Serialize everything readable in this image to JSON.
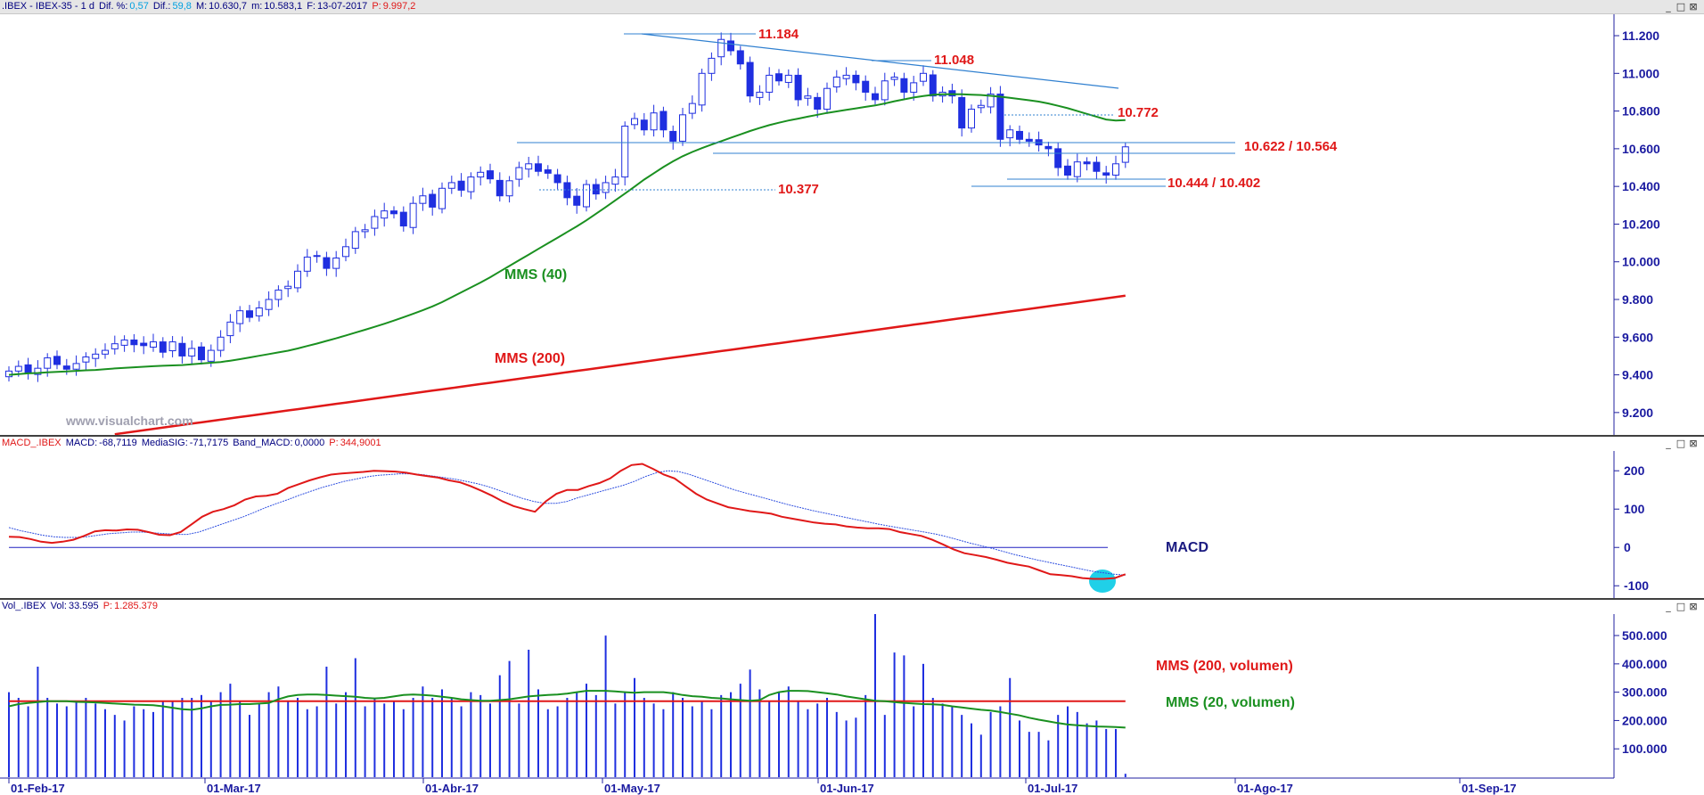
{
  "price_pane": {
    "header": {
      "symbol": ".IBEX - IBEX-35 - 1 d",
      "dif_pct_label": "Dif. %:",
      "dif_pct": "0,57",
      "dif_label": "Dif.:",
      "dif": "59,8",
      "max_label": "M:",
      "max": "10.630,7",
      "min_label": "m:",
      "min": "10.583,1",
      "date_label": "F:",
      "date": "13-07-2017",
      "p_label": "P:",
      "p": "9.997,2"
    },
    "watermark": "www.visualchart.com",
    "annotations": {
      "level_11184": "11.184",
      "level_11048": "11.048",
      "level_10772": "10.772",
      "level_10622": "10.622 / 10.564",
      "level_10377": "10.377",
      "level_10444": "10.444 / 10.402",
      "mms40": "MMS (40)",
      "mms200": "MMS (200)"
    }
  },
  "macd_pane": {
    "header": {
      "name": "MACD_.IBEX",
      "macd_label": "MACD:",
      "macd": "-68,7119",
      "sig_label": "MediaSIG:",
      "sig": "-71,7175",
      "band_label": "Band_MACD:",
      "band": "0,0000",
      "p_label": "P:",
      "p": "344,9001"
    },
    "label": "MACD"
  },
  "volume_pane": {
    "header": {
      "name": "Vol_.IBEX",
      "vol_label": "Vol:",
      "vol": "33.595",
      "p_label": "P:",
      "p": "1.285.379"
    },
    "label_ma200": "MMS (200, volumen)",
    "label_ma20": "MMS (20, volumen)"
  },
  "window_buttons": [
    "_",
    "□",
    "⊠"
  ],
  "colors": {
    "candle": "#1f2fe0",
    "mms40": "#1a9020",
    "mms200": "#e01818",
    "annotation_red": "#e01818",
    "trend_line": "#3080d0",
    "macd_line": "#e01818",
    "macd_signal": "#3050e0",
    "axis_text": "#1a1aa0",
    "circle": "#20d0e8"
  },
  "chart_data": [
    {
      "type": "candlestick",
      "title": ".IBEX - IBEX-35 - 1 d",
      "ylim": [
        9100,
        11290
      ],
      "y_ticks": [
        9200,
        9400,
        9600,
        9800,
        10000,
        10200,
        10400,
        10600,
        10800,
        11000,
        11200
      ],
      "y_tick_labels": [
        "9.200",
        "9.400",
        "9.600",
        "9.800",
        "10.000",
        "10.200",
        "10.400",
        "10.600",
        "10.800",
        "11.000",
        "11.200"
      ],
      "x_tick_labels": [
        "01-Feb-17",
        "01-Mar-17",
        "01-Abr-17",
        "01-May-17",
        "01-Jun-17",
        "01-Jul-17",
        "01-Ago-17",
        "01-Sep-17"
      ],
      "sessions": 117,
      "series": [
        {
          "name": "MMS (40)",
          "values": [
            9400,
            9404,
            9408,
            9410,
            9413,
            9416,
            9418,
            9421,
            9424,
            9426,
            9430,
            9434,
            9437,
            9440,
            9443,
            9446,
            9448,
            9450,
            9452,
            9456,
            9460,
            9464,
            9468,
            9475,
            9483,
            9492,
            9501,
            9510,
            9519,
            9528,
            9540,
            9553,
            9566,
            9580,
            9594,
            9609,
            9624,
            9639,
            9655,
            9671,
            9688,
            9706,
            9724,
            9743,
            9763,
            9786,
            9812,
            9838,
            9864,
            9890,
            9918,
            9948,
            9978,
            10008,
            10038,
            10068,
            10098,
            10128,
            10158,
            10188,
            10220,
            10255,
            10290,
            10326,
            10362,
            10399,
            10436,
            10470,
            10503,
            10533,
            10560,
            10583,
            10603,
            10622,
            10640,
            10658,
            10676,
            10694,
            10710,
            10725,
            10738,
            10750,
            10760,
            10770,
            10780,
            10790,
            10798,
            10806,
            10814,
            10822,
            10830,
            10840,
            10852,
            10862,
            10872,
            10880,
            10886,
            10889,
            10890,
            10889,
            10887,
            10885,
            10881,
            10876,
            10870,
            10864,
            10857,
            10850,
            10840,
            10828,
            10815,
            10800,
            10785,
            10770,
            10755,
            10750,
            10752
          ]
        },
        {
          "name": "MMS (200)",
          "values": [
            9085,
            9092,
            9099,
            9106,
            9113,
            9120,
            9127,
            9134,
            9141,
            9148,
            9155,
            9162,
            9169,
            9176,
            9183,
            9190,
            9197,
            9204,
            9211,
            9218,
            9225,
            9232,
            9239,
            9246,
            9253,
            9260,
            9267,
            9274,
            9281,
            9288,
            9295,
            9302,
            9309,
            9316,
            9323,
            9330,
            9337,
            9344,
            9351,
            9358,
            9365,
            9372,
            9379,
            9386,
            9393,
            9400,
            9407,
            9414,
            9421,
            9428,
            9435,
            9442,
            9449,
            9456,
            9463,
            9470,
            9477,
            9484,
            9491,
            9498,
            9505,
            9512,
            9519,
            9526,
            9533,
            9540,
            9547,
            9554,
            9561,
            9568,
            9575,
            9582,
            9589,
            9596,
            9603,
            9610,
            9617,
            9624,
            9631,
            9638,
            9645,
            9652,
            9659,
            9666,
            9673,
            9680,
            9687,
            9694,
            9701,
            9708,
            9715,
            9722,
            9729,
            9736,
            9743,
            9750,
            9757,
            9764,
            9771,
            9778,
            9785,
            9792,
            9799,
            9806,
            9813,
            9820
          ]
        }
      ],
      "closes": [
        9420,
        9445,
        9410,
        9435,
        9490,
        9455,
        9430,
        9460,
        9495,
        9510,
        9530,
        9565,
        9585,
        9560,
        9555,
        9575,
        9520,
        9575,
        9500,
        9540,
        9480,
        9530,
        9600,
        9680,
        9740,
        9705,
        9755,
        9800,
        9850,
        9870,
        9950,
        10025,
        10030,
        9965,
        10020,
        10080,
        10160,
        10170,
        10240,
        10270,
        10255,
        10190,
        10310,
        10350,
        10290,
        10390,
        10420,
        10380,
        10450,
        10475,
        10440,
        10350,
        10430,
        10500,
        10520,
        10480,
        10470,
        10420,
        10340,
        10300,
        10410,
        10360,
        10420,
        10450,
        10720,
        10760,
        10700,
        10790,
        10700,
        10640,
        10780,
        10840,
        11000,
        11080,
        11180,
        11120,
        11050,
        10880,
        10900,
        10990,
        10960,
        10990,
        10860,
        10880,
        10810,
        10920,
        10980,
        10990,
        10950,
        10900,
        10860,
        10960,
        10980,
        10900,
        10950,
        11000,
        10880,
        10900,
        10880,
        10710,
        10810,
        10830,
        10890,
        10650,
        10700,
        10650,
        10640,
        10620,
        10600,
        10500,
        10460,
        10530,
        10520,
        10480,
        10460,
        10520,
        10610
      ]
    },
    {
      "type": "line",
      "title": "MACD_.IBEX",
      "ylim": [
        -125,
        240
      ],
      "y_ticks": [
        -100,
        0,
        100,
        200
      ],
      "y_tick_labels": [
        "-100",
        "0",
        "100",
        "200"
      ],
      "band": 0,
      "series": [
        {
          "name": "MACD",
          "values": [
            28,
            27,
            22,
            15,
            12,
            15,
            20,
            30,
            42,
            45,
            44,
            47,
            46,
            40,
            33,
            32,
            40,
            60,
            80,
            93,
            100,
            110,
            125,
            133,
            135,
            140,
            155,
            165,
            175,
            183,
            190,
            193,
            195,
            197,
            200,
            199,
            198,
            195,
            190,
            186,
            182,
            175,
            170,
            160,
            148,
            135,
            120,
            108,
            100,
            93,
            120,
            140,
            150,
            150,
            160,
            168,
            180,
            200,
            215,
            218,
            205,
            190,
            180,
            160,
            140,
            125,
            115,
            105,
            100,
            95,
            92,
            88,
            80,
            75,
            70,
            65,
            62,
            60,
            55,
            52,
            50,
            50,
            48,
            40,
            35,
            30,
            20,
            8,
            -5,
            -15,
            -20,
            -25,
            -32,
            -40,
            -45,
            -50,
            -60,
            -70,
            -72,
            -75,
            -80,
            -82,
            -82,
            -80,
            -70
          ]
        },
        {
          "name": "MediaSIG",
          "values": [
            52,
            44,
            38,
            32,
            28,
            26,
            26,
            28,
            32,
            36,
            38,
            40,
            40,
            38,
            36,
            34,
            34,
            40,
            50,
            60,
            70,
            80,
            92,
            104,
            115,
            125,
            136,
            146,
            156,
            164,
            172,
            178,
            184,
            188,
            190,
            192,
            192,
            190,
            186,
            182,
            178,
            172,
            166,
            158,
            148,
            138,
            128,
            120,
            115,
            115,
            120,
            130,
            138,
            146,
            154,
            162,
            172,
            185,
            195,
            200,
            198,
            190,
            180,
            170,
            160,
            150,
            142,
            134,
            126,
            118,
            110,
            103,
            96,
            90,
            84,
            78,
            72,
            66,
            60,
            55,
            50,
            45,
            40,
            35,
            28,
            20,
            12,
            5,
            -2,
            -10,
            -18,
            -25,
            -32,
            -38,
            -44,
            -50,
            -56,
            -62,
            -66,
            -70,
            -72
          ]
        }
      ]
    },
    {
      "type": "bar",
      "title": "Vol_.IBEX",
      "ylim": [
        0,
        560000
      ],
      "y_ticks": [
        100000,
        200000,
        300000,
        400000,
        500000
      ],
      "y_tick_labels": [
        "100.000",
        "200.000",
        "300.000",
        "400.000",
        "500.000"
      ],
      "values": [
        300000,
        280000,
        250000,
        390000,
        280000,
        260000,
        250000,
        270000,
        280000,
        260000,
        240000,
        220000,
        200000,
        250000,
        240000,
        230000,
        270000,
        270000,
        280000,
        280000,
        290000,
        270000,
        300000,
        330000,
        270000,
        220000,
        260000,
        300000,
        320000,
        270000,
        280000,
        240000,
        250000,
        390000,
        260000,
        300000,
        420000,
        250000,
        280000,
        260000,
        270000,
        240000,
        280000,
        320000,
        280000,
        310000,
        280000,
        250000,
        300000,
        290000,
        260000,
        360000,
        410000,
        260000,
        450000,
        310000,
        240000,
        250000,
        280000,
        300000,
        330000,
        290000,
        500000,
        260000,
        300000,
        350000,
        280000,
        260000,
        240000,
        300000,
        280000,
        250000,
        270000,
        240000,
        290000,
        300000,
        330000,
        380000,
        310000,
        270000,
        300000,
        320000,
        270000,
        240000,
        260000,
        280000,
        230000,
        200000,
        210000,
        290000,
        580000,
        220000,
        440000,
        430000,
        250000,
        400000,
        280000,
        260000,
        250000,
        220000,
        190000,
        150000,
        230000,
        250000,
        350000,
        200000,
        160000,
        160000,
        130000,
        220000,
        250000,
        230000,
        190000,
        200000,
        170000,
        170000,
        12000
      ],
      "series": [
        {
          "name": "MMS (200, volumen)",
          "values": [
            268000,
            268000,
            268000,
            268000,
            268000,
            268000,
            268000,
            268000,
            268000,
            268000,
            268000,
            268000,
            268000,
            268000,
            268000,
            268000,
            268000,
            268000,
            268000,
            268000,
            268000,
            268000,
            268000,
            268000,
            268000,
            268000,
            268000,
            268000,
            268000,
            268000,
            268000,
            268000,
            268000,
            268000,
            268000,
            268000,
            268000,
            268000,
            268000,
            268000,
            268000,
            268000,
            268000,
            268000,
            268000,
            268000,
            268000,
            268000,
            268000,
            268000,
            268000,
            268000,
            268000,
            268000,
            268000,
            268000,
            268000,
            268000,
            268000,
            268000,
            268000,
            268000,
            268000,
            268000,
            268000,
            268000,
            268000,
            268000,
            268000,
            268000,
            268000,
            268000,
            268000,
            268000,
            268000,
            268000,
            268000,
            268000,
            268000,
            268000,
            268000,
            268000,
            268000,
            268000,
            268000,
            268000,
            268000,
            268000,
            268000,
            268000,
            268000,
            268000,
            268000,
            268000,
            268000,
            268000,
            268000,
            268000,
            268000,
            268000,
            268000,
            268000,
            268000,
            268000,
            268000,
            268000,
            268000,
            268000,
            268000,
            268000,
            268000,
            268000,
            268000,
            268000,
            268000,
            268000,
            268000
          ]
        },
        {
          "name": "MMS (20, volumen)",
          "values": [
            250000,
            258000,
            262000,
            265000,
            268000,
            268000,
            268000,
            266000,
            265000,
            264000,
            262000,
            260000,
            258000,
            256000,
            255000,
            254000,
            250000,
            245000,
            240000,
            238000,
            243000,
            250000,
            255000,
            256000,
            258000,
            258000,
            260000,
            262000,
            275000,
            285000,
            290000,
            292000,
            292000,
            290000,
            288000,
            286000,
            284000,
            280000,
            278000,
            280000,
            285000,
            290000,
            292000,
            290000,
            288000,
            284000,
            280000,
            275000,
            272000,
            270000,
            270000,
            272000,
            275000,
            280000,
            285000,
            288000,
            290000,
            292000,
            295000,
            300000,
            305000,
            305000,
            305000,
            303000,
            300000,
            298000,
            300000,
            300000,
            300000,
            296000,
            290000,
            286000,
            284000,
            280000,
            278000,
            275000,
            272000,
            270000,
            272000,
            290000,
            300000,
            305000,
            305000,
            304000,
            300000,
            296000,
            292000,
            285000,
            280000,
            275000,
            270000,
            268000,
            265000,
            262000,
            260000,
            258000,
            257000,
            255000,
            250000,
            246000,
            242000,
            238000,
            235000,
            230000,
            224000,
            218000,
            210000,
            203000,
            197000,
            191000,
            186000,
            183000,
            181000,
            179000,
            178000,
            177000,
            175000
          ]
        }
      ]
    }
  ]
}
